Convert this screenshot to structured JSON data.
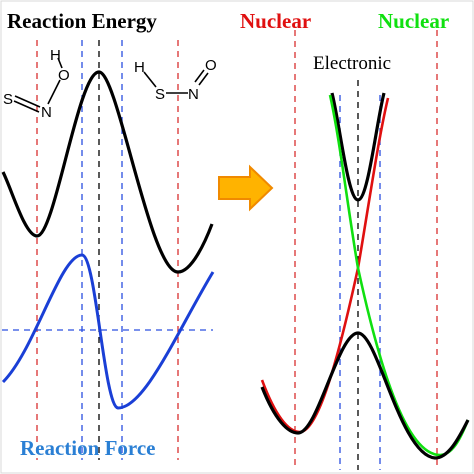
{
  "titles": {
    "reaction_energy": "Reaction Energy",
    "reaction_force": "Reaction Force",
    "nuclear_left": "Nuclear",
    "nuclear_right": "Nuclear",
    "electronic": "Electronic"
  },
  "molecules": {
    "reactant": {
      "atom_s": "S",
      "atom_n": "N",
      "atom_o": "O",
      "atom_h": "H"
    },
    "product": {
      "atom_h": "H",
      "atom_s": "S",
      "atom_n": "N",
      "atom_o": "O"
    }
  },
  "colors": {
    "energy_curve": "#000000",
    "force_curve": "#1a3fd6",
    "reaction_force_text": "#2a7fd4",
    "nuclear_left": "#e01010",
    "nuclear_right": "#10e010",
    "arrow_fill": "#ffb300",
    "arrow_stroke": "#f08a00",
    "red_guides": "#d83030",
    "blue_guides": "#2a4fe0",
    "black_guides": "#000000"
  },
  "icons": {
    "transition_arrow": "right-arrow-icon"
  }
}
